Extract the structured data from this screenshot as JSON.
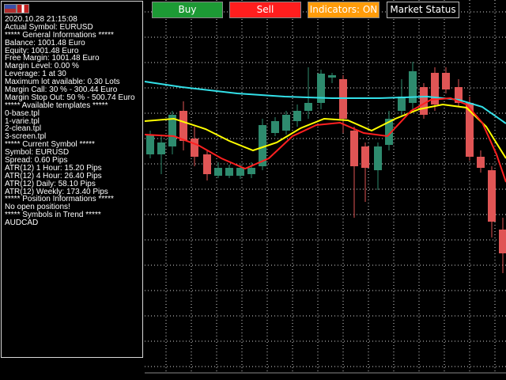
{
  "info_panel": {
    "lines": [
      "2020.10.28 21:15:08",
      " Actual Symbol: EURUSD",
      "***** General Informations *****",
      "Balance: 1001.48 Euro",
      "Equity: 1001.48 Euro",
      "Free Margin: 1001.48 Euro",
      "Margin Level: 0.00 %",
      "Leverage: 1 at 30",
      "Maximum lot available: 0.30 Lots",
      "Margin Call: 30 % - 300.44 Euro",
      "Margin Stop Out: 50 % - 500.74 Euro",
      "***** Available templates *****",
      "0-base.tpl",
      "1-varie.tpl",
      "2-clean.tpl",
      "3-screen.tpl",
      "***** Current Symbol *****",
      "Symbol: EURUSD",
      "Spread: 0.60 Pips",
      "ATR(12) 1 Hour: 15.20 Pips",
      "ATR(12) 4 Hour: 26.40 Pips",
      "ATR(12) Daily: 58.10 Pips",
      "ATR(12) Weekly: 173.40 Pips",
      "***** Position Informations *****",
      "No open positions!",
      "***** Symbols in Trend *****",
      "AUDCAD"
    ]
  },
  "buttons": {
    "buy": "Buy",
    "sell": "Sell",
    "indicators": "Indicators:  ON",
    "market_status": "Market Status"
  },
  "colors": {
    "bull_candle": "#2e8b6e",
    "bear_candle": "#e05555",
    "ma_fast": "#ff2020",
    "ma_mid": "#ffff00",
    "ma_slow": "#33e0e8",
    "grid": "#ffffff"
  },
  "icons": [
    "flag-icon-eu",
    "flag-icon-it"
  ]
}
